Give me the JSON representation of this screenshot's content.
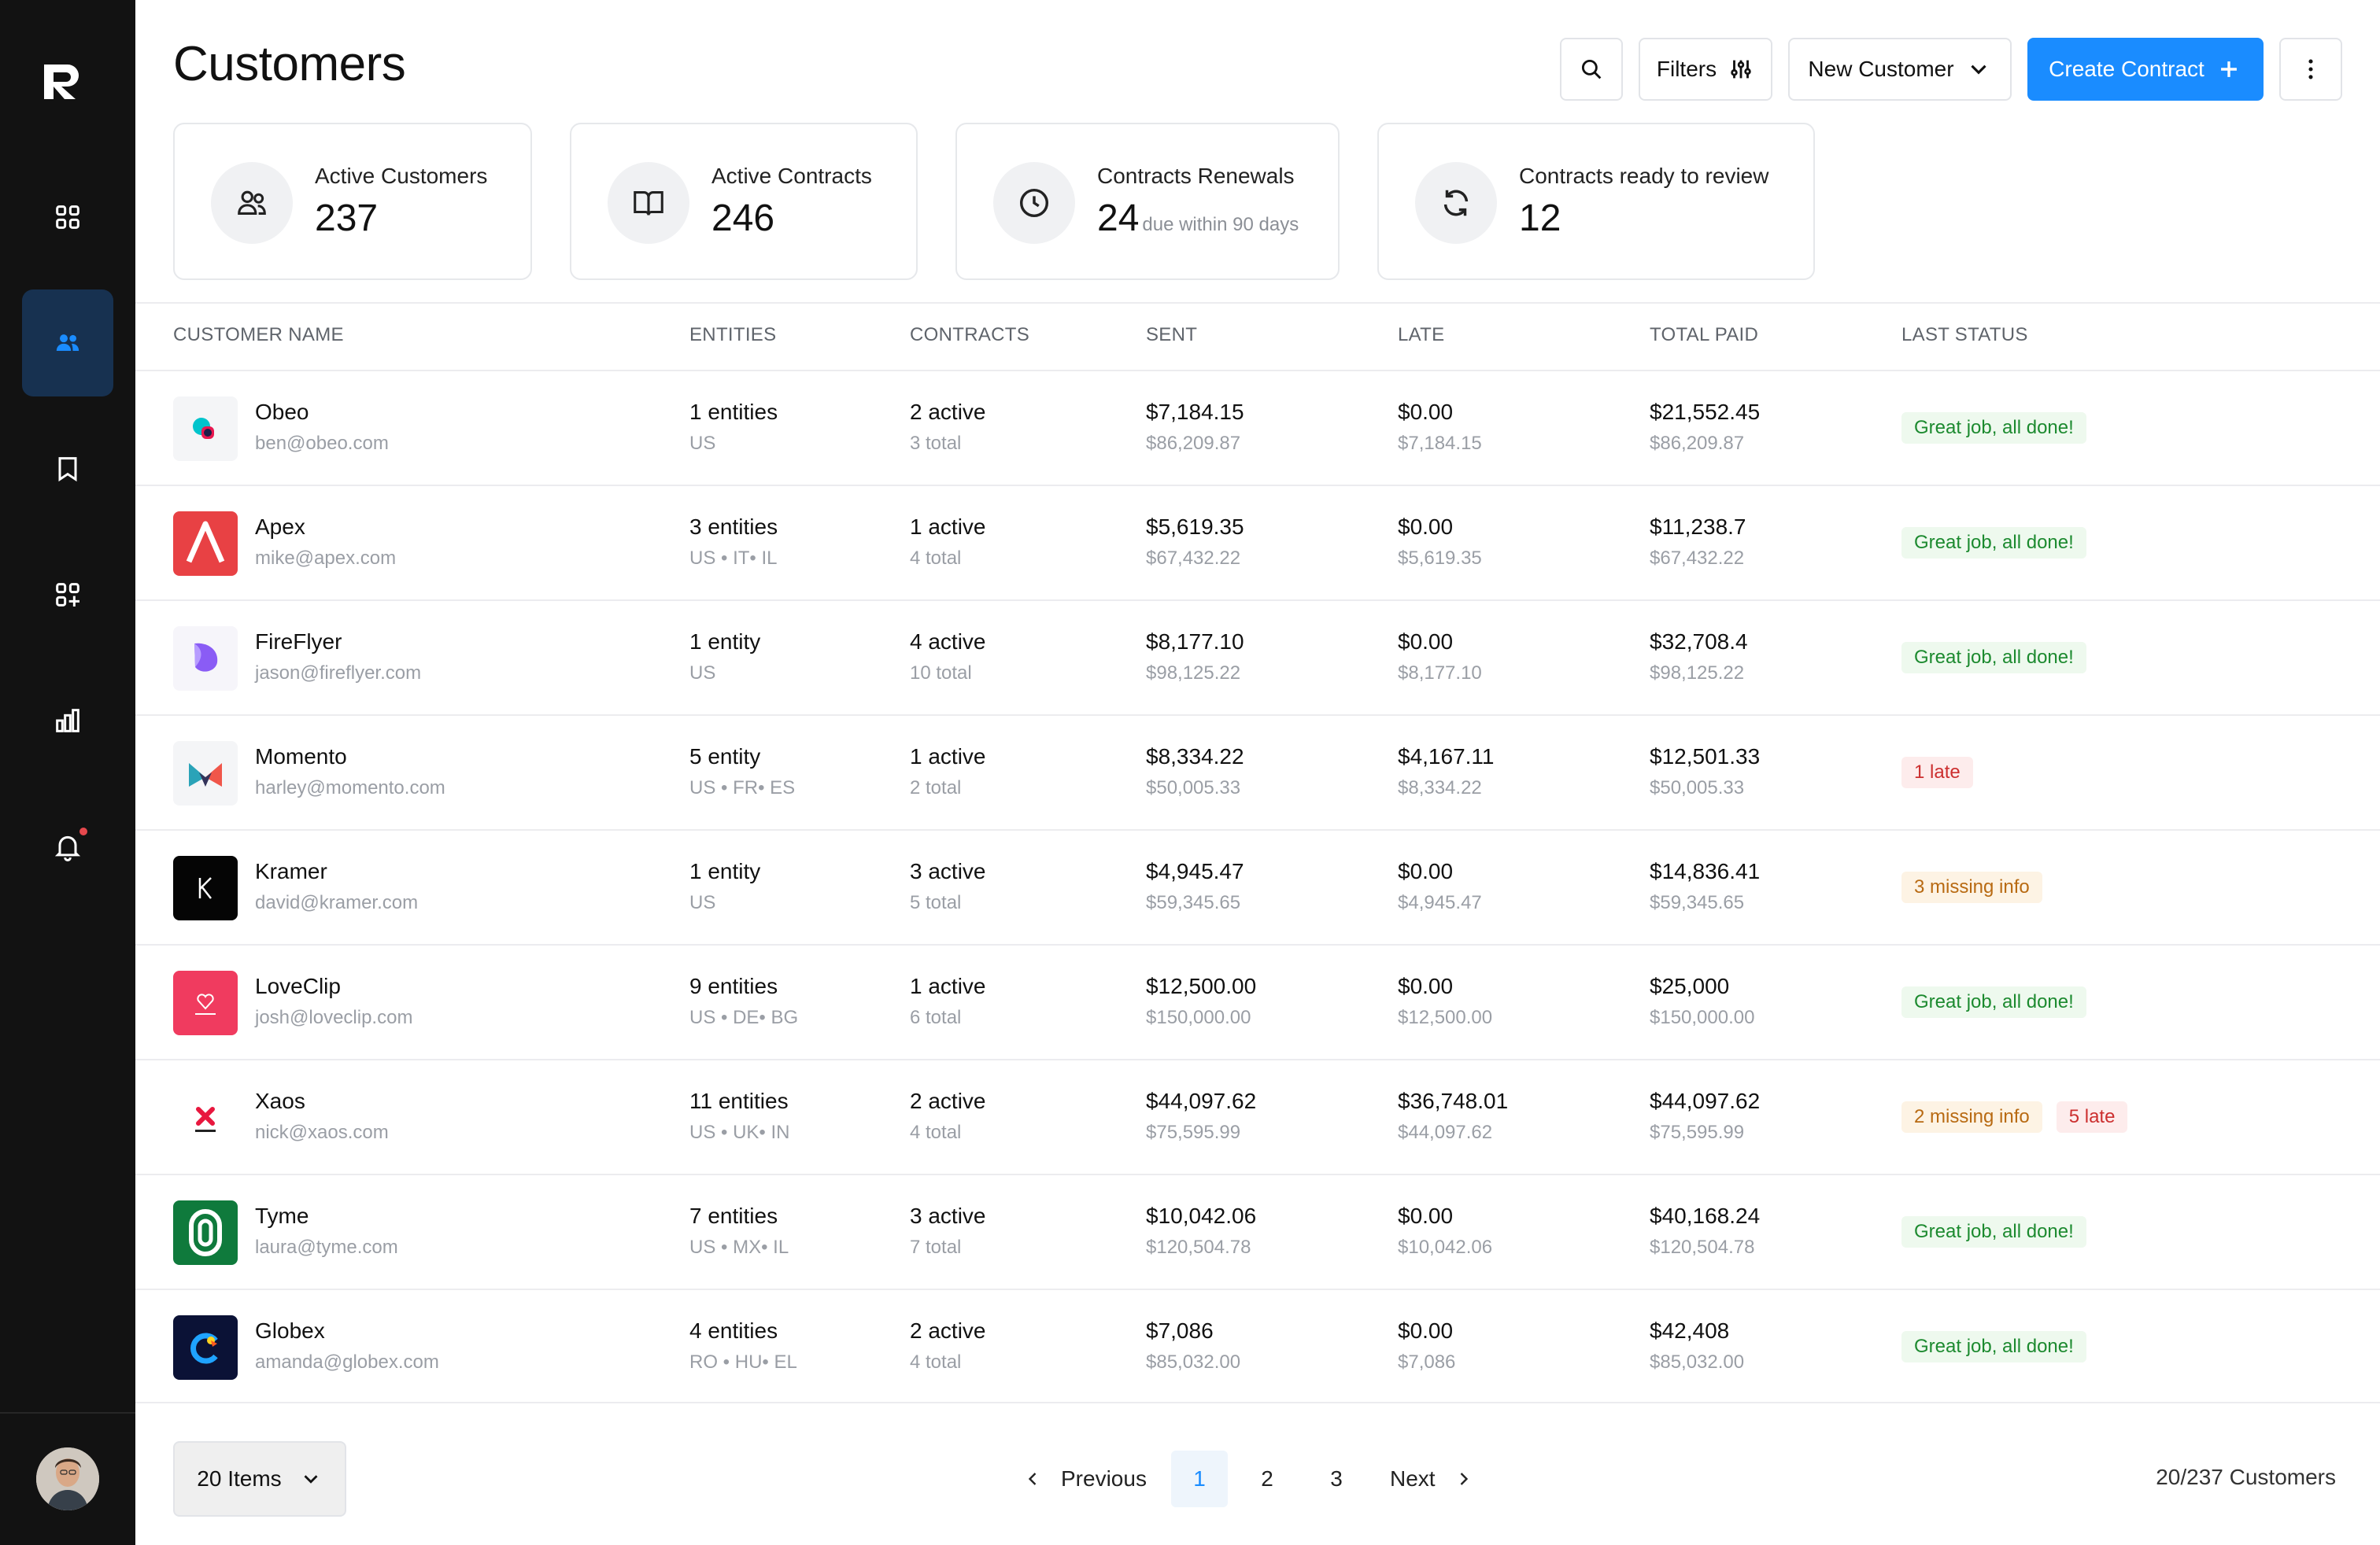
{
  "page": {
    "title": "Customers"
  },
  "header": {
    "filters_label": "Filters",
    "new_customer_label": "New Customer",
    "create_contract_label": "Create Contract"
  },
  "stats": [
    {
      "label": "Active Customers",
      "value": "237",
      "sub": "",
      "icon": "users-icon"
    },
    {
      "label": "Active Contracts",
      "value": "246",
      "sub": "",
      "icon": "book-icon"
    },
    {
      "label": "Contracts Renewals",
      "value": "24",
      "sub": "due within 90 days",
      "icon": "clock-icon"
    },
    {
      "label": "Contracts ready to review",
      "value": "12",
      "sub": "",
      "icon": "refresh-icon"
    }
  ],
  "table": {
    "columns": [
      "CUSTOMER NAME",
      "ENTITIES",
      "CONTRACTS",
      "SENT",
      "LATE",
      "TOTAL PAID",
      "LAST STATUS"
    ],
    "rows": [
      {
        "name": "Obeo",
        "email": "ben@obeo.com",
        "entities": "1 entities",
        "entities_sub": "US",
        "contracts": "2 active",
        "contracts_sub": "3 total",
        "sent": "$7,184.15",
        "sent_sub": "$86,209.87",
        "late": "$0.00",
        "late_sub": "$7,184.15",
        "paid": "$21,552.45",
        "paid_sub": "$86,209.87",
        "status": [
          {
            "text": "Great job, all done!",
            "kind": "success"
          }
        ]
      },
      {
        "name": "Apex",
        "email": "mike@apex.com",
        "entities": "3 entities",
        "entities_sub": "US • IT• IL",
        "contracts": "1 active",
        "contracts_sub": "4 total",
        "sent": "$5,619.35",
        "sent_sub": "$67,432.22",
        "late": "$0.00",
        "late_sub": "$5,619.35",
        "paid": "$11,238.7",
        "paid_sub": "$67,432.22",
        "status": [
          {
            "text": "Great job, all done!",
            "kind": "success"
          }
        ]
      },
      {
        "name": "FireFlyer",
        "email": "jason@fireflyer.com",
        "entities": "1 entity",
        "entities_sub": "US",
        "contracts": "4 active",
        "contracts_sub": "10 total",
        "sent": "$8,177.10",
        "sent_sub": "$98,125.22",
        "late": "$0.00",
        "late_sub": "$8,177.10",
        "paid": "$32,708.4",
        "paid_sub": "$98,125.22",
        "status": [
          {
            "text": "Great job, all done!",
            "kind": "success"
          }
        ]
      },
      {
        "name": "Momento",
        "email": "harley@momento.com",
        "entities": "5 entity",
        "entities_sub": "US • FR• ES",
        "contracts": "1 active",
        "contracts_sub": "2 total",
        "sent": "$8,334.22",
        "sent_sub": "$50,005.33",
        "late": "$4,167.11",
        "late_sub": "$8,334.22",
        "paid": "$12,501.33",
        "paid_sub": "$50,005.33",
        "status": [
          {
            "text": "1 late",
            "kind": "late"
          }
        ]
      },
      {
        "name": "Kramer",
        "email": "david@kramer.com",
        "entities": "1 entity",
        "entities_sub": "US",
        "contracts": "3 active",
        "contracts_sub": "5 total",
        "sent": "$4,945.47",
        "sent_sub": "$59,345.65",
        "late": "$0.00",
        "late_sub": "$4,945.47",
        "paid": "$14,836.41",
        "paid_sub": "$59,345.65",
        "status": [
          {
            "text": "3 missing info",
            "kind": "missing"
          }
        ]
      },
      {
        "name": "LoveClip",
        "email": "josh@loveclip.com",
        "entities": "9 entities",
        "entities_sub": "US • DE• BG",
        "contracts": "1 active",
        "contracts_sub": "6 total",
        "sent": "$12,500.00",
        "sent_sub": "$150,000.00",
        "late": "$0.00",
        "late_sub": "$12,500.00",
        "paid": "$25,000",
        "paid_sub": "$150,000.00",
        "status": [
          {
            "text": "Great job, all done!",
            "kind": "success"
          }
        ]
      },
      {
        "name": "Xaos",
        "email": "nick@xaos.com",
        "entities": "11 entities",
        "entities_sub": "US • UK• IN",
        "contracts": "2 active",
        "contracts_sub": "4 total",
        "sent": "$44,097.62",
        "sent_sub": "$75,595.99",
        "late": "$36,748.01",
        "late_sub": "$44,097.62",
        "paid": "$44,097.62",
        "paid_sub": "$75,595.99",
        "status": [
          {
            "text": "2 missing info",
            "kind": "missing"
          },
          {
            "text": "5 late",
            "kind": "late"
          }
        ]
      },
      {
        "name": "Tyme",
        "email": "laura@tyme.com",
        "entities": "7 entities",
        "entities_sub": "US • MX• IL",
        "contracts": "3 active",
        "contracts_sub": "7 total",
        "sent": "$10,042.06",
        "sent_sub": "$120,504.78",
        "late": "$0.00",
        "late_sub": "$10,042.06",
        "paid": "$40,168.24",
        "paid_sub": "$120,504.78",
        "status": [
          {
            "text": "Great job, all done!",
            "kind": "success"
          }
        ]
      },
      {
        "name": "Globex",
        "email": "amanda@globex.com",
        "entities": "4 entities",
        "entities_sub": "RO • HU• EL",
        "contracts": "2 active",
        "contracts_sub": "4 total",
        "sent": "$7,086",
        "sent_sub": "$85,032.00",
        "late": "$0.00",
        "late_sub": "$7,086",
        "paid": "$42,408",
        "paid_sub": "$85,032.00",
        "status": [
          {
            "text": "Great job, all done!",
            "kind": "success"
          }
        ]
      }
    ]
  },
  "footer": {
    "items_label": "20 Items",
    "previous_label": "Previous",
    "next_label": "Next",
    "pages": [
      "1",
      "2",
      "3"
    ],
    "current_page": "1",
    "count_label": "20/237 Customers"
  },
  "colors": {
    "accent": "#1a8cff",
    "sidebar": "#121212",
    "success": "#1c8a2f",
    "late": "#cc2f2f",
    "missing": "#b86a12"
  }
}
